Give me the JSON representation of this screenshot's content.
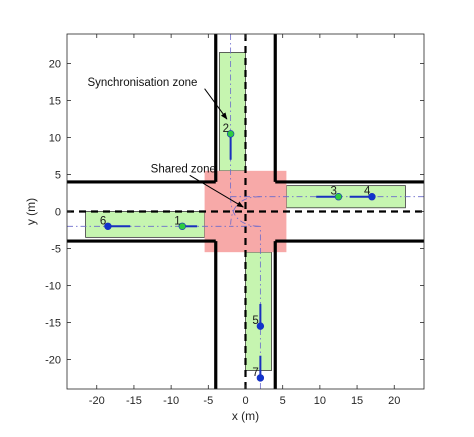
{
  "chart_data": {
    "type": "scatter",
    "title": "",
    "xlabel": "x (m)",
    "ylabel": "y (m)",
    "xlim": [
      -24,
      24
    ],
    "ylim": [
      -24,
      24
    ],
    "xticks": [
      -20,
      -15,
      -10,
      -5,
      0,
      5,
      10,
      15,
      20
    ],
    "yticks": [
      -20,
      -15,
      -10,
      -5,
      0,
      5,
      10,
      15,
      20
    ],
    "xtick_labels": [
      "-20",
      "-15",
      "-10",
      "-5",
      "0",
      "5",
      "10",
      "15",
      "20"
    ],
    "ytick_labels": [
      "-20",
      "-15",
      "-10",
      "-5",
      "0",
      "5",
      "10",
      "15",
      "20"
    ],
    "grid": false,
    "road": {
      "lane_edge_offset": 4,
      "road_edges_x": [
        -4,
        4
      ],
      "road_edges_y": [
        -4,
        4
      ]
    },
    "shared_zone": {
      "x": [
        -5.5,
        5.5
      ],
      "y": [
        -5.5,
        5.5
      ],
      "color": "#f7a9a8"
    },
    "sync_zones": [
      {
        "x": [
          -3.5,
          0
        ],
        "y": [
          5.5,
          21.5
        ]
      },
      {
        "x": [
          5.5,
          21.5
        ],
        "y": [
          0.5,
          3.5
        ]
      },
      {
        "x": [
          -21.5,
          -5.5
        ],
        "y": [
          -3.5,
          0
        ]
      },
      {
        "x": [
          0,
          3.5
        ],
        "y": [
          -21.5,
          -5.5
        ]
      }
    ],
    "sync_zone_color": "#c6f5b0",
    "vehicles": [
      {
        "label": "1",
        "x": -8.5,
        "y": -2.0,
        "head": [
          -8.5,
          -2.0
        ],
        "tail": [
          -6.5,
          -2.0
        ],
        "color": "#2ecc40"
      },
      {
        "label": "2",
        "x": -2.0,
        "y": 10.5,
        "head": [
          -2.0,
          10.5
        ],
        "tail": [
          -2.0,
          7.0
        ],
        "color": "#2ecc40"
      },
      {
        "label": "3",
        "x": 12.5,
        "y": 2.0,
        "head": [
          12.5,
          2.0
        ],
        "tail": [
          9.5,
          2.0
        ],
        "color": "#2ecc40"
      },
      {
        "label": "4",
        "x": 17.0,
        "y": 2.0,
        "head": [
          17.0,
          2.0
        ],
        "tail": [
          14.0,
          2.0
        ],
        "color": "#1133cc"
      },
      {
        "label": "5",
        "x": 2.0,
        "y": -15.5,
        "head": [
          2.0,
          -15.5
        ],
        "tail": [
          2.0,
          -12.5
        ],
        "color": "#1133cc"
      },
      {
        "label": "6",
        "x": -18.5,
        "y": -2.0,
        "head": [
          -18.5,
          -2.0
        ],
        "tail": [
          -15.5,
          -2.0
        ],
        "color": "#1133cc"
      },
      {
        "label": "7",
        "x": 2.0,
        "y": -22.5,
        "head": [
          2.0,
          -22.5
        ],
        "tail": [
          2.0,
          -19.5
        ],
        "color": "#1133cc"
      }
    ],
    "annotations": [
      {
        "text": "Synchronisation zone",
        "from": [
          -23,
          17.5
        ],
        "to": [
          -2.5,
          12.5
        ]
      },
      {
        "text": "Shared zone",
        "from": [
          -14.5,
          5.8
        ],
        "to": [
          -0.3,
          0.6
        ]
      }
    ]
  }
}
